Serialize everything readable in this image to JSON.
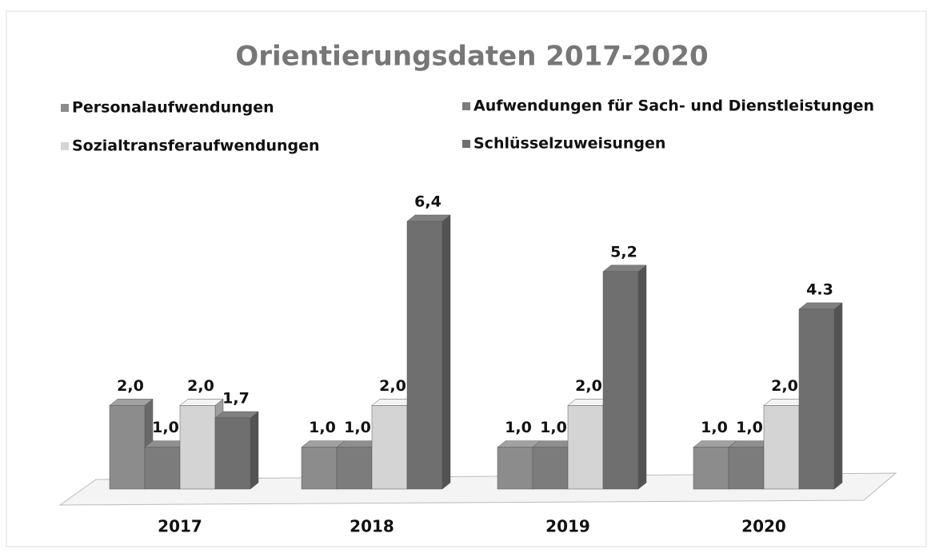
{
  "chart_data": {
    "type": "bar3d",
    "title": "Orientierungsdaten 2017-2020",
    "categories": [
      "2017",
      "2018",
      "2019",
      "2020"
    ],
    "series": [
      {
        "name": "Personalaufwendungen",
        "color": "#8c8c8c",
        "values": [
          2.0,
          1.0,
          1.0,
          1.0
        ],
        "value_labels": [
          "2,0",
          "1,0",
          "1,0",
          "1,0"
        ]
      },
      {
        "name": "Aufwendungen für Sach- und Dienstleistungen",
        "color": "#7c7c7c",
        "values": [
          1.0,
          1.0,
          1.0,
          1.0
        ],
        "value_labels": [
          "1,0",
          "1,0",
          "1,0",
          "1,0"
        ]
      },
      {
        "name": "Sozialtransferaufwendungen",
        "color": "#d4d4d4",
        "values": [
          2.0,
          2.0,
          2.0,
          2.0
        ],
        "value_labels": [
          "2,0",
          "2,0",
          "2,0",
          "2,0"
        ]
      },
      {
        "name": "Schlüsselzuweisungen",
        "color": "#6f6f6f",
        "values": [
          1.7,
          6.4,
          5.2,
          4.3
        ],
        "value_labels": [
          "1,7",
          "6,4",
          "5,2",
          "4.3"
        ]
      }
    ]
  }
}
